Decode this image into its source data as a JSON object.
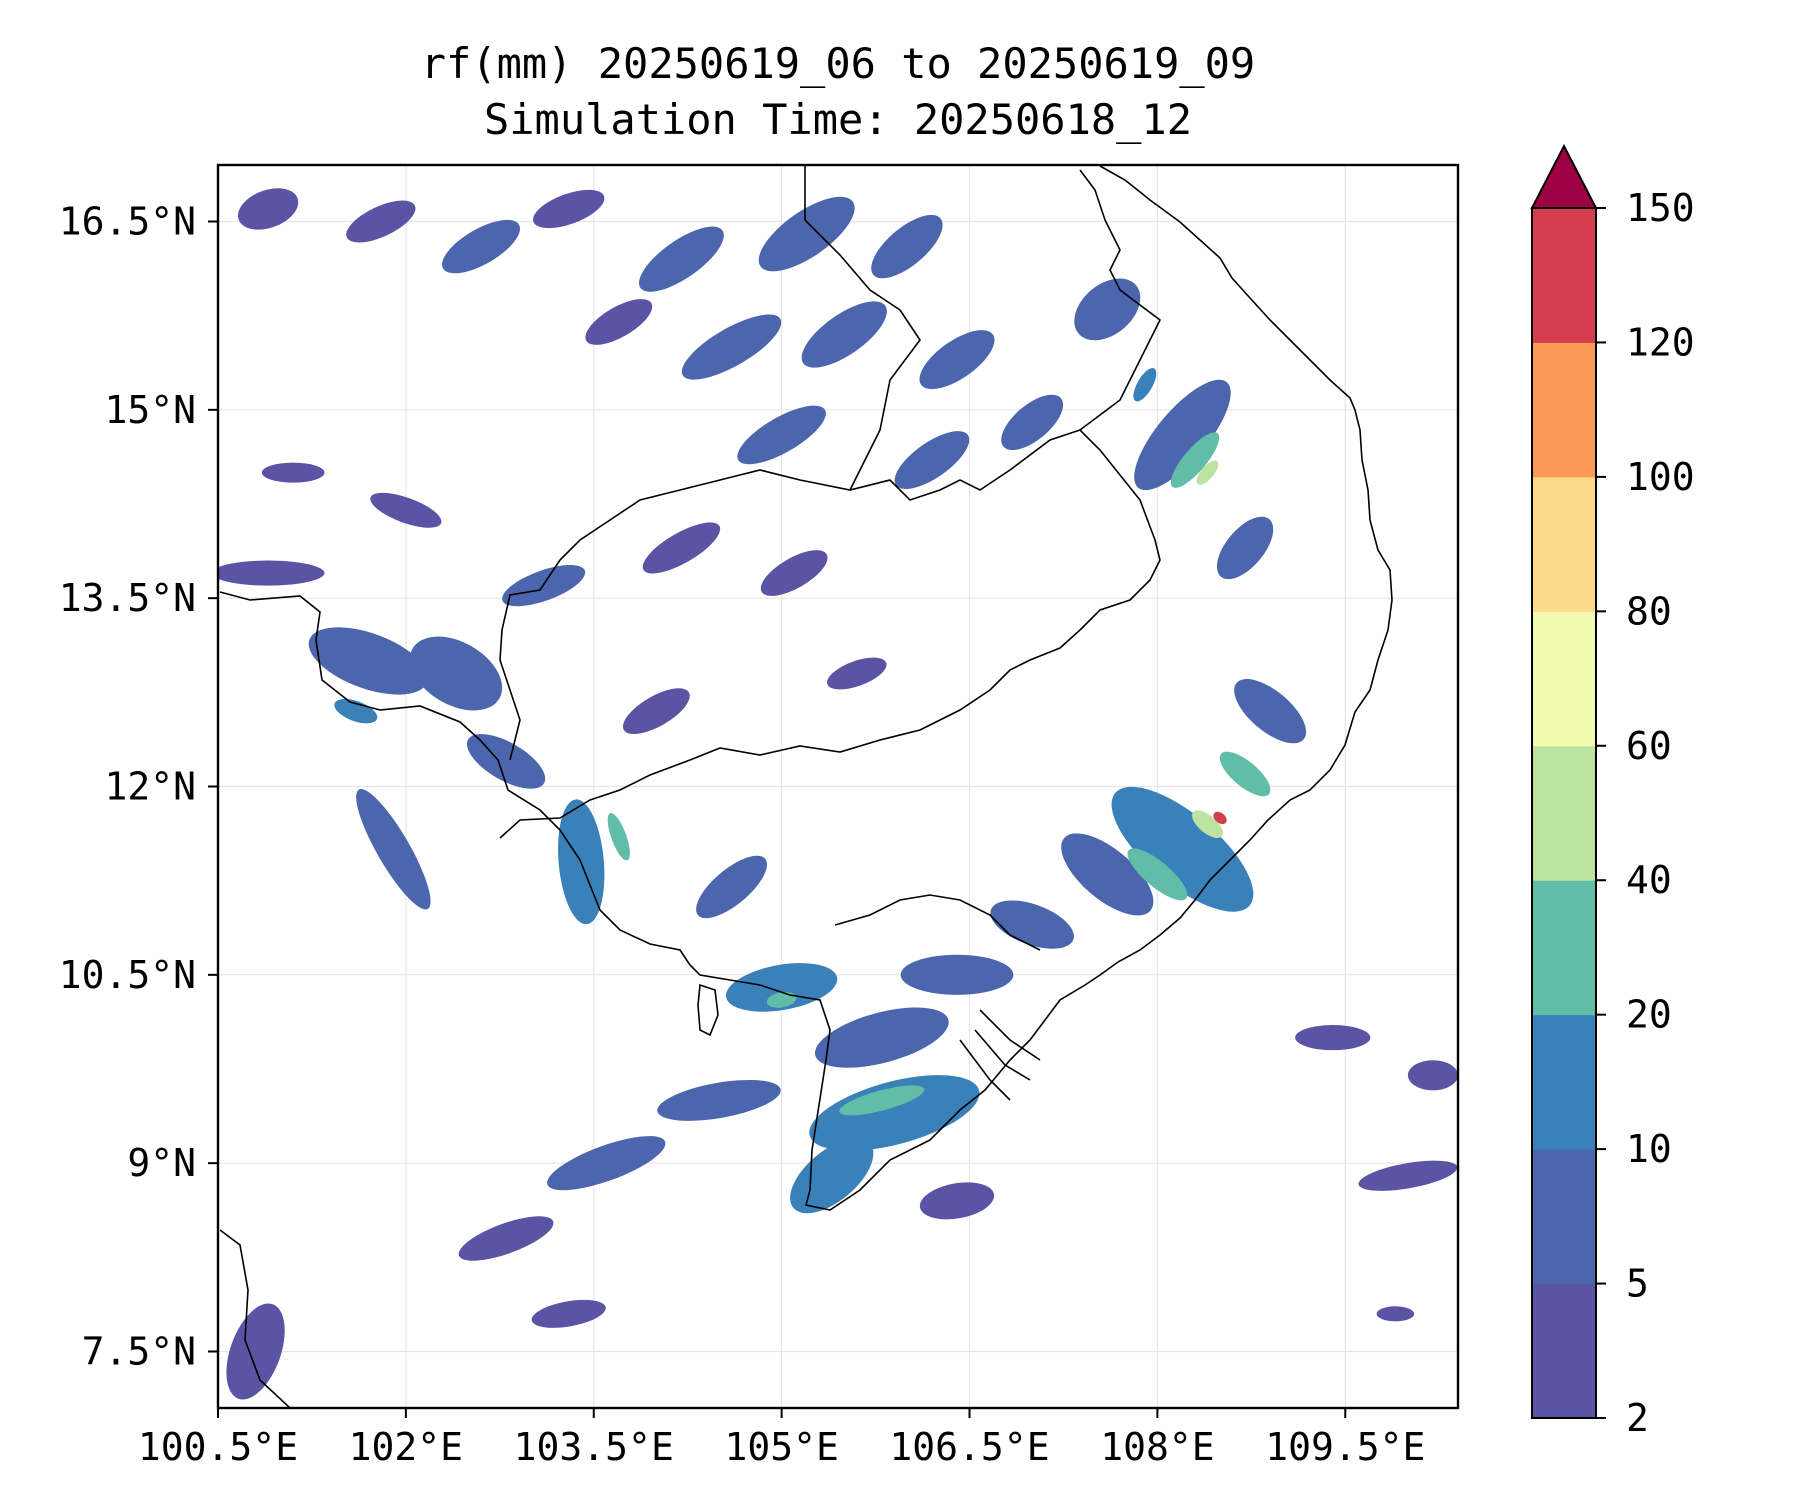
{
  "chart_data": {
    "type": "heatmap",
    "title": "rf(mm) 20250619_06 to 20250619_09",
    "subtitle": "Simulation Time: 20250618_12",
    "x_ticks": [
      "100.5°E",
      "102°E",
      "103.5°E",
      "105°E",
      "106.5°E",
      "108°E",
      "109.5°E"
    ],
    "x_tick_values": [
      100.5,
      102,
      103.5,
      105,
      106.5,
      108,
      109.5
    ],
    "y_ticks": [
      "16.5°N",
      "15°N",
      "13.5°N",
      "12°N",
      "10.5°N",
      "9°N",
      "7.5°N"
    ],
    "y_tick_values": [
      16.5,
      15,
      13.5,
      12,
      10.5,
      9,
      7.5
    ],
    "xlim": [
      100.5,
      110.4
    ],
    "ylim": [
      7.05,
      16.95
    ],
    "grid": true,
    "colorbar": {
      "levels": [
        2,
        5,
        10,
        20,
        40,
        60,
        80,
        100,
        120,
        150
      ],
      "labels": [
        "2",
        "5",
        "10",
        "20",
        "40",
        "60",
        "80",
        "100",
        "120",
        "150"
      ],
      "colors": [
        "#5b53a4",
        "#4b66ad",
        "#3a80b9",
        "#62bda8",
        "#bde3a1",
        "#f2f9b0",
        "#fcdc8a",
        "#f99a58",
        "#d53e4f"
      ],
      "extend_color": "#9e0142",
      "extend": "max"
    },
    "rain_cells": [
      {
        "lon": 100.9,
        "lat": 16.6,
        "rx": 0.25,
        "ry": 0.15,
        "a": 20,
        "v": 4
      },
      {
        "lon": 101.8,
        "lat": 16.5,
        "rx": 0.3,
        "ry": 0.12,
        "a": 25,
        "v": 4
      },
      {
        "lon": 102.6,
        "lat": 16.3,
        "rx": 0.35,
        "ry": 0.14,
        "a": 30,
        "v": 6
      },
      {
        "lon": 103.3,
        "lat": 16.6,
        "rx": 0.3,
        "ry": 0.12,
        "a": 20,
        "v": 4
      },
      {
        "lon": 104.2,
        "lat": 16.2,
        "rx": 0.4,
        "ry": 0.15,
        "a": 35,
        "v": 6
      },
      {
        "lon": 105.2,
        "lat": 16.4,
        "rx": 0.45,
        "ry": 0.18,
        "a": 35,
        "v": 7
      },
      {
        "lon": 106.0,
        "lat": 16.3,
        "rx": 0.35,
        "ry": 0.15,
        "a": 40,
        "v": 6
      },
      {
        "lon": 104.6,
        "lat": 15.5,
        "rx": 0.45,
        "ry": 0.15,
        "a": 30,
        "v": 6
      },
      {
        "lon": 105.5,
        "lat": 15.6,
        "rx": 0.4,
        "ry": 0.16,
        "a": 35,
        "v": 7
      },
      {
        "lon": 106.4,
        "lat": 15.4,
        "rx": 0.35,
        "ry": 0.15,
        "a": 35,
        "v": 6
      },
      {
        "lon": 103.7,
        "lat": 15.7,
        "rx": 0.3,
        "ry": 0.12,
        "a": 30,
        "v": 4
      },
      {
        "lon": 105.0,
        "lat": 14.8,
        "rx": 0.4,
        "ry": 0.14,
        "a": 30,
        "v": 6
      },
      {
        "lon": 106.2,
        "lat": 14.6,
        "rx": 0.35,
        "ry": 0.14,
        "a": 35,
        "v": 6
      },
      {
        "lon": 107.0,
        "lat": 14.9,
        "rx": 0.3,
        "ry": 0.14,
        "a": 40,
        "v": 6
      },
      {
        "lon": 107.6,
        "lat": 15.8,
        "rx": 0.3,
        "ry": 0.2,
        "a": 40,
        "v": 7
      },
      {
        "lon": 108.2,
        "lat": 14.8,
        "rx": 0.55,
        "ry": 0.2,
        "a": 50,
        "v": 8
      },
      {
        "lon": 108.3,
        "lat": 14.6,
        "rx": 0.28,
        "ry": 0.09,
        "a": 50,
        "v": 25
      },
      {
        "lon": 108.4,
        "lat": 14.5,
        "rx": 0.12,
        "ry": 0.05,
        "a": 50,
        "v": 50
      },
      {
        "lon": 107.9,
        "lat": 15.2,
        "rx": 0.15,
        "ry": 0.06,
        "a": 60,
        "v": 15
      },
      {
        "lon": 108.7,
        "lat": 13.9,
        "rx": 0.3,
        "ry": 0.15,
        "a": 50,
        "v": 6
      },
      {
        "lon": 100.9,
        "lat": 13.7,
        "rx": 0.45,
        "ry": 0.1,
        "a": 0,
        "v": 4
      },
      {
        "lon": 101.7,
        "lat": 13.0,
        "rx": 0.5,
        "ry": 0.22,
        "a": -20,
        "v": 7
      },
      {
        "lon": 102.4,
        "lat": 12.9,
        "rx": 0.4,
        "ry": 0.25,
        "a": -30,
        "v": 7
      },
      {
        "lon": 101.6,
        "lat": 12.6,
        "rx": 0.18,
        "ry": 0.08,
        "a": -20,
        "v": 15
      },
      {
        "lon": 101.9,
        "lat": 11.5,
        "rx": 0.55,
        "ry": 0.13,
        "a": -60,
        "v": 6
      },
      {
        "lon": 103.4,
        "lat": 11.4,
        "rx": 0.5,
        "ry": 0.18,
        "a": -85,
        "v": 12
      },
      {
        "lon": 103.7,
        "lat": 11.6,
        "rx": 0.2,
        "ry": 0.06,
        "a": -70,
        "v": 30
      },
      {
        "lon": 102.8,
        "lat": 12.2,
        "rx": 0.35,
        "ry": 0.15,
        "a": -30,
        "v": 6
      },
      {
        "lon": 103.1,
        "lat": 13.6,
        "rx": 0.35,
        "ry": 0.12,
        "a": 20,
        "v": 5
      },
      {
        "lon": 104.2,
        "lat": 13.9,
        "rx": 0.35,
        "ry": 0.12,
        "a": 30,
        "v": 4
      },
      {
        "lon": 105.1,
        "lat": 13.7,
        "rx": 0.3,
        "ry": 0.12,
        "a": 30,
        "v": 4
      },
      {
        "lon": 104.0,
        "lat": 12.6,
        "rx": 0.3,
        "ry": 0.12,
        "a": 30,
        "v": 4
      },
      {
        "lon": 105.6,
        "lat": 12.9,
        "rx": 0.25,
        "ry": 0.1,
        "a": 20,
        "v": 4
      },
      {
        "lon": 104.6,
        "lat": 11.2,
        "rx": 0.35,
        "ry": 0.14,
        "a": 40,
        "v": 5
      },
      {
        "lon": 105.0,
        "lat": 10.4,
        "rx": 0.45,
        "ry": 0.18,
        "a": 10,
        "v": 12
      },
      {
        "lon": 105.0,
        "lat": 10.3,
        "rx": 0.12,
        "ry": 0.06,
        "a": 10,
        "v": 28
      },
      {
        "lon": 105.8,
        "lat": 10.0,
        "rx": 0.55,
        "ry": 0.2,
        "a": 15,
        "v": 9
      },
      {
        "lon": 105.9,
        "lat": 9.4,
        "rx": 0.7,
        "ry": 0.25,
        "a": 15,
        "v": 14
      },
      {
        "lon": 105.8,
        "lat": 9.5,
        "rx": 0.35,
        "ry": 0.08,
        "a": 15,
        "v": 28
      },
      {
        "lon": 105.4,
        "lat": 8.9,
        "rx": 0.4,
        "ry": 0.2,
        "a": 40,
        "v": 10
      },
      {
        "lon": 104.5,
        "lat": 9.5,
        "rx": 0.5,
        "ry": 0.14,
        "a": 10,
        "v": 7
      },
      {
        "lon": 103.6,
        "lat": 9.0,
        "rx": 0.5,
        "ry": 0.14,
        "a": 20,
        "v": 6
      },
      {
        "lon": 102.8,
        "lat": 8.4,
        "rx": 0.4,
        "ry": 0.12,
        "a": 20,
        "v": 4
      },
      {
        "lon": 103.3,
        "lat": 7.8,
        "rx": 0.3,
        "ry": 0.1,
        "a": 10,
        "v": 4
      },
      {
        "lon": 106.4,
        "lat": 8.7,
        "rx": 0.3,
        "ry": 0.14,
        "a": 10,
        "v": 4
      },
      {
        "lon": 106.4,
        "lat": 10.5,
        "rx": 0.45,
        "ry": 0.16,
        "a": 0,
        "v": 6
      },
      {
        "lon": 107.0,
        "lat": 10.9,
        "rx": 0.35,
        "ry": 0.16,
        "a": -20,
        "v": 7
      },
      {
        "lon": 107.6,
        "lat": 11.3,
        "rx": 0.45,
        "ry": 0.2,
        "a": -40,
        "v": 9
      },
      {
        "lon": 108.2,
        "lat": 11.5,
        "rx": 0.7,
        "ry": 0.28,
        "a": -40,
        "v": 12
      },
      {
        "lon": 108.0,
        "lat": 11.3,
        "rx": 0.3,
        "ry": 0.1,
        "a": -40,
        "v": 30
      },
      {
        "lon": 108.4,
        "lat": 11.7,
        "rx": 0.15,
        "ry": 0.07,
        "a": -40,
        "v": 50
      },
      {
        "lon": 108.5,
        "lat": 11.75,
        "rx": 0.06,
        "ry": 0.04,
        "a": -40,
        "v": 140
      },
      {
        "lon": 108.7,
        "lat": 12.1,
        "rx": 0.25,
        "ry": 0.1,
        "a": -40,
        "v": 30
      },
      {
        "lon": 108.9,
        "lat": 12.6,
        "rx": 0.35,
        "ry": 0.16,
        "a": -40,
        "v": 8
      },
      {
        "lon": 109.4,
        "lat": 10.0,
        "rx": 0.3,
        "ry": 0.1,
        "a": 0,
        "v": 4
      },
      {
        "lon": 110.0,
        "lat": 8.9,
        "rx": 0.4,
        "ry": 0.1,
        "a": 10,
        "v": 4
      },
      {
        "lon": 110.2,
        "lat": 9.7,
        "rx": 0.2,
        "ry": 0.12,
        "a": 0,
        "v": 4
      },
      {
        "lon": 109.9,
        "lat": 7.8,
        "rx": 0.15,
        "ry": 0.06,
        "a": 0,
        "v": 3
      },
      {
        "lon": 100.8,
        "lat": 7.5,
        "rx": 0.2,
        "ry": 0.4,
        "a": -20,
        "v": 4
      },
      {
        "lon": 102.0,
        "lat": 14.2,
        "rx": 0.3,
        "ry": 0.1,
        "a": -20,
        "v": 4
      },
      {
        "lon": 101.1,
        "lat": 14.5,
        "rx": 0.25,
        "ry": 0.08,
        "a": 0,
        "v": 4
      }
    ]
  }
}
